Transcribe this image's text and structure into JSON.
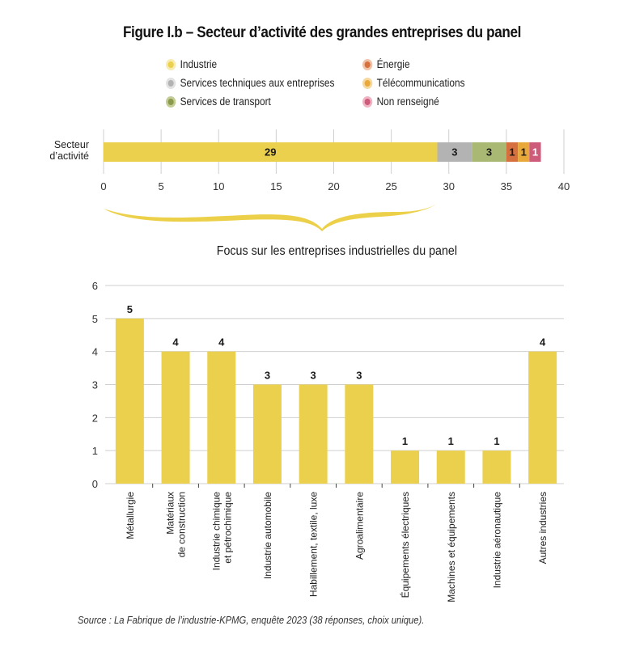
{
  "figure": {
    "title": "Figure I.b – Secteur d’activité des grandes entreprises du panel",
    "subtitle": "Focus sur les entreprises industrielles du panel",
    "source": "Source : La Fabrique de l’industrie-KPMG, enquête 2023 (38 réponses, choix unique)."
  },
  "legend": {
    "items": [
      {
        "label": "Industrie",
        "color": "#ebd04d",
        "halo": "#f7ebb0",
        "column": "left"
      },
      {
        "label": "Services techniques aux entreprises",
        "color": "#b3b3b3",
        "halo": "#e3e3e3",
        "column": "left"
      },
      {
        "label": "Services de transport",
        "color": "#8a9a4a",
        "halo": "#c4cd96",
        "column": "left"
      },
      {
        "label": "Énergie",
        "color": "#d6703f",
        "halo": "#f0c2a6",
        "column": "right"
      },
      {
        "label": "Télécommunications",
        "color": "#e8a93a",
        "halo": "#f6d9a0",
        "column": "right"
      },
      {
        "label": "Non renseigné",
        "color": "#cf5b7b",
        "halo": "#efb5c4",
        "column": "right"
      }
    ]
  },
  "chart_data": [
    {
      "type": "bar",
      "orientation": "horizontal",
      "stacked": true,
      "title": "Secteur d’activité des grandes entreprises du panel",
      "categories": [
        "Secteur d’activité"
      ],
      "category_label_lines": [
        "Secteur",
        "d’activité"
      ],
      "series": [
        {
          "name": "Industrie",
          "values": [
            29
          ],
          "color": "#ebd04d",
          "label_color": "#1a1a1a"
        },
        {
          "name": "Services techniques aux entreprises",
          "values": [
            3
          ],
          "color": "#b3b3b3",
          "label_color": "#1a1a1a"
        },
        {
          "name": "Services de transport",
          "values": [
            3
          ],
          "color": "#a9b872",
          "label_color": "#1a1a1a"
        },
        {
          "name": "Énergie",
          "values": [
            1
          ],
          "color": "#d6703f",
          "label_color": "#1a1a1a"
        },
        {
          "name": "Télécommunications",
          "values": [
            1
          ],
          "color": "#e8a93a",
          "label_color": "#1a1a1a"
        },
        {
          "name": "Non renseigné",
          "values": [
            1
          ],
          "color": "#cf5b7b",
          "label_color": "#ffffff"
        }
      ],
      "xlim": [
        0,
        40
      ],
      "xticks": [
        0,
        5,
        10,
        15,
        20,
        25,
        30,
        35,
        40
      ],
      "xlabel": "",
      "ylabel": "",
      "grid": "vertical",
      "legend_position": "top"
    },
    {
      "type": "bar",
      "orientation": "vertical",
      "title": "Focus sur les entreprises industrielles du panel",
      "categories": [
        "Métallurgie",
        "Matériaux de construction",
        "Industrie chimique et pétrochimique",
        "Industrie automobile",
        "Habillement, textile, luxe",
        "Agroalimentaire",
        "Équipements électriques",
        "Machines et équipements",
        "Industrie aéronautique",
        "Autres industries"
      ],
      "category_label_lines": [
        [
          "Métallurgie"
        ],
        [
          "Matériaux",
          "de construction"
        ],
        [
          "Industrie chimique",
          "et pétrochimique"
        ],
        [
          "Industrie automobile"
        ],
        [
          "Habillement, textile, luxe"
        ],
        [
          "Agroalimentaire"
        ],
        [
          "Équipements électriques"
        ],
        [
          "Machines et équipements"
        ],
        [
          "Industrie aéronautique"
        ],
        [
          "Autres industries"
        ]
      ],
      "values": [
        5,
        4,
        4,
        3,
        3,
        3,
        1,
        1,
        1,
        4
      ],
      "color": "#ebd04d",
      "ylim": [
        0,
        6
      ],
      "yticks": [
        0,
        1,
        2,
        3,
        4,
        5,
        6
      ],
      "xlabel": "",
      "ylabel": "",
      "grid": "horizontal",
      "data_labels": true
    }
  ],
  "colors": {
    "grid": "#cfcfcf",
    "axis_text": "#333333",
    "brace": "#ecd04a"
  }
}
